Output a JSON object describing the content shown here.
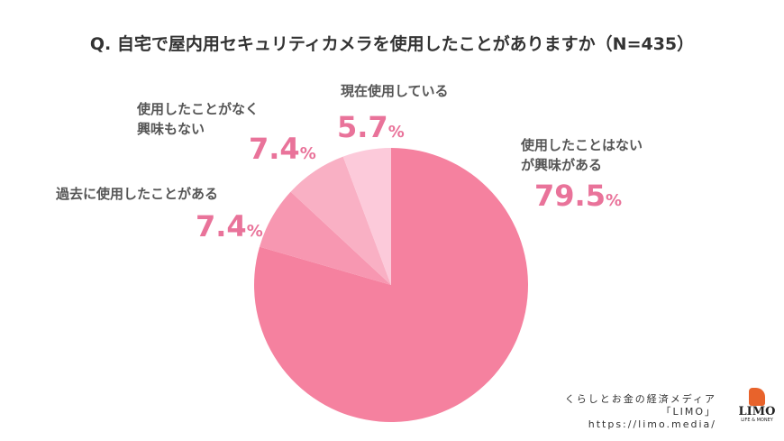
{
  "chart_data": {
    "type": "pie",
    "title": "Q. 自宅で屋内用セキュリティカメラを使用したことがありますか（N=435）",
    "slices": [
      {
        "label": "使用したことはないが興味がある",
        "label_lines": [
          "使用したことはない",
          "が興味がある"
        ],
        "value": 79.5,
        "display": "79.5",
        "color": "#f5819f"
      },
      {
        "label": "過去に使用したことがある",
        "label_lines": [
          "過去に使用したことがある"
        ],
        "value": 7.4,
        "display": "7.4",
        "color": "#f797b1"
      },
      {
        "label": "使用したことがなく興味もない",
        "label_lines": [
          "使用したことがなく",
          "興味もない"
        ],
        "value": 7.4,
        "display": "7.4",
        "color": "#f9b0c4"
      },
      {
        "label": "現在使用している",
        "label_lines": [
          "現在使用している"
        ],
        "value": 5.7,
        "display": "5.7",
        "color": "#fccada"
      }
    ],
    "unit": "%",
    "start": "12 o'clock, clockwise"
  },
  "credit": {
    "line1": "くらしとお金の経済メディア",
    "line2": "「LIMO」",
    "url": "https://limo.media/"
  },
  "logo": {
    "name": "LIMO",
    "sub": "LIFE & MONEY"
  }
}
